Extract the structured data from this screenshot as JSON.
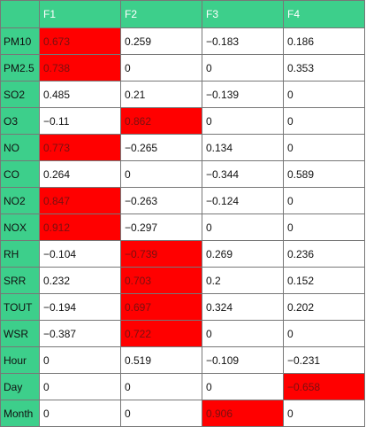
{
  "header": [
    "",
    "F1",
    "F2",
    "F3",
    "F4"
  ],
  "highlight_color": "#ff0000",
  "header_color": "#3dcf8b",
  "rows": [
    {
      "label": "PM10",
      "values": [
        "0.673",
        "0.259",
        "−0.183",
        "0.186"
      ],
      "highlight": [
        true,
        false,
        false,
        false
      ]
    },
    {
      "label": "PM2.5",
      "values": [
        "0.738",
        "0",
        "0",
        "0.353"
      ],
      "highlight": [
        true,
        false,
        false,
        false
      ]
    },
    {
      "label": "SO2",
      "values": [
        "0.485",
        "0.21",
        "−0.139",
        "0"
      ],
      "highlight": [
        false,
        false,
        false,
        false
      ]
    },
    {
      "label": "O3",
      "values": [
        "−0.11",
        "0.862",
        "0",
        "0"
      ],
      "highlight": [
        false,
        true,
        false,
        false
      ]
    },
    {
      "label": "NO",
      "values": [
        "0.773",
        "−0.265",
        "0.134",
        "0"
      ],
      "highlight": [
        true,
        false,
        false,
        false
      ]
    },
    {
      "label": "CO",
      "values": [
        "0.264",
        "0",
        "−0.344",
        "0.589"
      ],
      "highlight": [
        false,
        false,
        false,
        false
      ]
    },
    {
      "label": "NO2",
      "values": [
        "0.847",
        "−0.263",
        "−0.124",
        "0"
      ],
      "highlight": [
        true,
        false,
        false,
        false
      ]
    },
    {
      "label": "NOX",
      "values": [
        "0.912",
        "−0.297",
        "0",
        "0"
      ],
      "highlight": [
        true,
        false,
        false,
        false
      ]
    },
    {
      "label": "RH",
      "values": [
        "−0.104",
        "−0.739",
        "0.269",
        "0.236"
      ],
      "highlight": [
        false,
        true,
        false,
        false
      ]
    },
    {
      "label": "SRR",
      "values": [
        "0.232",
        "0.703",
        "0.2",
        "0.152"
      ],
      "highlight": [
        false,
        true,
        false,
        false
      ]
    },
    {
      "label": "TOUT",
      "values": [
        "−0.194",
        "0.697",
        "0.324",
        "0.202"
      ],
      "highlight": [
        false,
        true,
        false,
        false
      ]
    },
    {
      "label": "WSR",
      "values": [
        "−0.387",
        "0.722",
        "0",
        "0"
      ],
      "highlight": [
        false,
        true,
        false,
        false
      ]
    },
    {
      "label": "Hour",
      "values": [
        "0",
        "0.519",
        "−0.109",
        "−0.231"
      ],
      "highlight": [
        false,
        false,
        false,
        false
      ]
    },
    {
      "label": "Day",
      "values": [
        "0",
        "0",
        "0",
        "−0.658"
      ],
      "highlight": [
        false,
        false,
        false,
        true
      ]
    },
    {
      "label": "Month",
      "values": [
        "0",
        "0",
        "0.906",
        "0"
      ],
      "highlight": [
        false,
        false,
        true,
        false
      ]
    }
  ]
}
